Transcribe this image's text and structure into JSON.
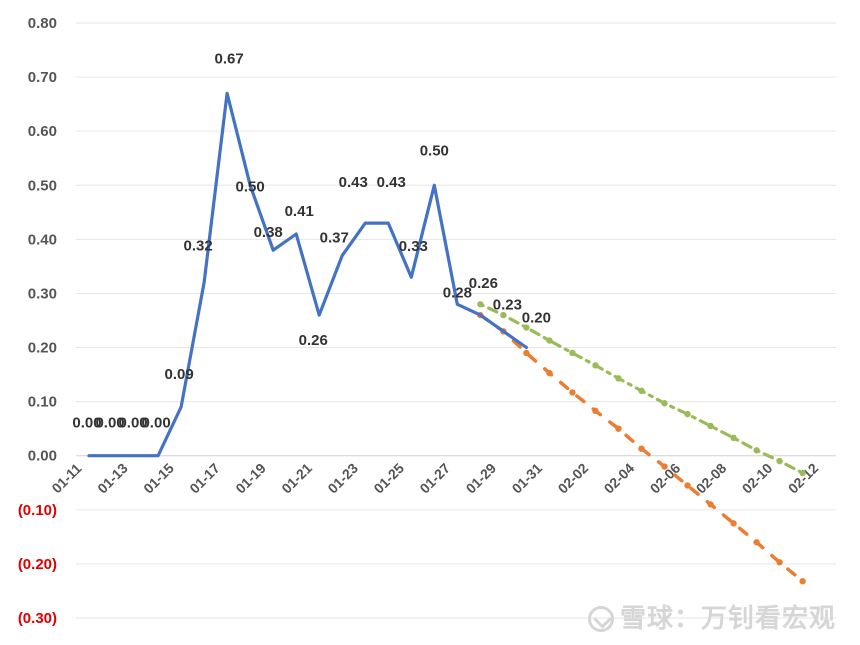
{
  "chart_data": {
    "type": "line",
    "title": "",
    "xlabel": "",
    "ylabel": "",
    "ylim": [
      -0.3,
      0.8
    ],
    "yticks": [
      -0.3,
      -0.2,
      -0.1,
      0.0,
      0.1,
      0.2,
      0.3,
      0.4,
      0.5,
      0.6,
      0.7,
      0.8
    ],
    "ytick_labels": [
      "(0.30)",
      "(0.20)",
      "(0.10)",
      "0.00",
      "0.10",
      "0.20",
      "0.30",
      "0.40",
      "0.50",
      "0.60",
      "0.70",
      "0.80"
    ],
    "negative_tick_color": "#e00000",
    "categories": [
      "01-11",
      "01-12",
      "01-13",
      "01-14",
      "01-15",
      "01-16",
      "01-17",
      "01-18",
      "01-19",
      "01-20",
      "01-21",
      "01-22",
      "01-23",
      "01-24",
      "01-25",
      "01-26",
      "01-27",
      "01-28",
      "01-29",
      "01-30",
      "01-31",
      "02-01",
      "02-02",
      "02-03",
      "02-04",
      "02-05",
      "02-06",
      "02-07",
      "02-08",
      "02-09",
      "02-10",
      "02-11",
      "02-12"
    ],
    "xtick_labels": [
      "01-11",
      "01-13",
      "01-15",
      "01-17",
      "01-19",
      "01-21",
      "01-23",
      "01-25",
      "01-27",
      "01-29",
      "01-31",
      "02-02",
      "02-04",
      "02-06",
      "02-08",
      "02-10",
      "02-12"
    ],
    "grid": true,
    "series": [
      {
        "style": "solid",
        "color": "#4472c4",
        "points": [
          {
            "x": "01-12",
            "y": 0.0,
            "label": "0.00"
          },
          {
            "x": "01-13",
            "y": 0.0,
            "label": "0.00"
          },
          {
            "x": "01-14",
            "y": 0.0,
            "label": "0.00"
          },
          {
            "x": "01-15",
            "y": 0.0,
            "label": "0.00"
          },
          {
            "x": "01-16",
            "y": 0.09,
            "label": "0.09"
          },
          {
            "x": "01-17",
            "y": 0.32,
            "label": "0.32"
          },
          {
            "x": "01-18",
            "y": 0.67,
            "label": "0.67"
          },
          {
            "x": "01-19",
            "y": 0.5,
            "label": "0.50"
          },
          {
            "x": "01-20",
            "y": 0.38,
            "label": "0.38"
          },
          {
            "x": "01-21",
            "y": 0.41,
            "label": "0.41"
          },
          {
            "x": "01-22",
            "y": 0.26,
            "label": "0.26"
          },
          {
            "x": "01-23",
            "y": 0.37,
            "label": "0.37"
          },
          {
            "x": "01-24",
            "y": 0.43,
            "label": "0.43"
          },
          {
            "x": "01-25",
            "y": 0.43,
            "label": "0.43"
          },
          {
            "x": "01-26",
            "y": 0.33,
            "label": "0.33"
          },
          {
            "x": "01-27",
            "y": 0.5,
            "label": "0.50"
          },
          {
            "x": "01-28",
            "y": 0.28,
            "label": "0.28"
          },
          {
            "x": "01-29",
            "y": 0.26,
            "label": "0.26"
          },
          {
            "x": "01-30",
            "y": 0.23,
            "label": "0.23"
          },
          {
            "x": "01-31",
            "y": 0.2,
            "label": "0.20"
          }
        ]
      },
      {
        "style": "dashed",
        "color": "#ed7d31",
        "points": [
          {
            "x": "01-29",
            "y": 0.26
          },
          {
            "x": "01-30",
            "y": 0.23
          },
          {
            "x": "01-31",
            "y": 0.19
          },
          {
            "x": "02-01",
            "y": 0.153
          },
          {
            "x": "02-02",
            "y": 0.117
          },
          {
            "x": "02-03",
            "y": 0.083
          },
          {
            "x": "02-04",
            "y": 0.05
          },
          {
            "x": "02-05",
            "y": 0.013
          },
          {
            "x": "02-06",
            "y": -0.02
          },
          {
            "x": "02-07",
            "y": -0.055
          },
          {
            "x": "02-08",
            "y": -0.09
          },
          {
            "x": "02-09",
            "y": -0.125
          },
          {
            "x": "02-10",
            "y": -0.16
          },
          {
            "x": "02-11",
            "y": -0.197
          },
          {
            "x": "02-12",
            "y": -0.232
          }
        ]
      },
      {
        "style": "dash-dot",
        "color": "#9bbb59",
        "points": [
          {
            "x": "01-29",
            "y": 0.28
          },
          {
            "x": "01-30",
            "y": 0.26
          },
          {
            "x": "01-31",
            "y": 0.237
          },
          {
            "x": "02-01",
            "y": 0.213
          },
          {
            "x": "02-02",
            "y": 0.19
          },
          {
            "x": "02-03",
            "y": 0.167
          },
          {
            "x": "02-04",
            "y": 0.143
          },
          {
            "x": "02-05",
            "y": 0.12
          },
          {
            "x": "02-06",
            "y": 0.097
          },
          {
            "x": "02-07",
            "y": 0.077
          },
          {
            "x": "02-08",
            "y": 0.055
          },
          {
            "x": "02-09",
            "y": 0.033
          },
          {
            "x": "02-10",
            "y": 0.01
          },
          {
            "x": "02-11",
            "y": -0.01
          },
          {
            "x": "02-12",
            "y": -0.032
          }
        ]
      }
    ]
  },
  "watermark": "雪球：万钊看宏观"
}
